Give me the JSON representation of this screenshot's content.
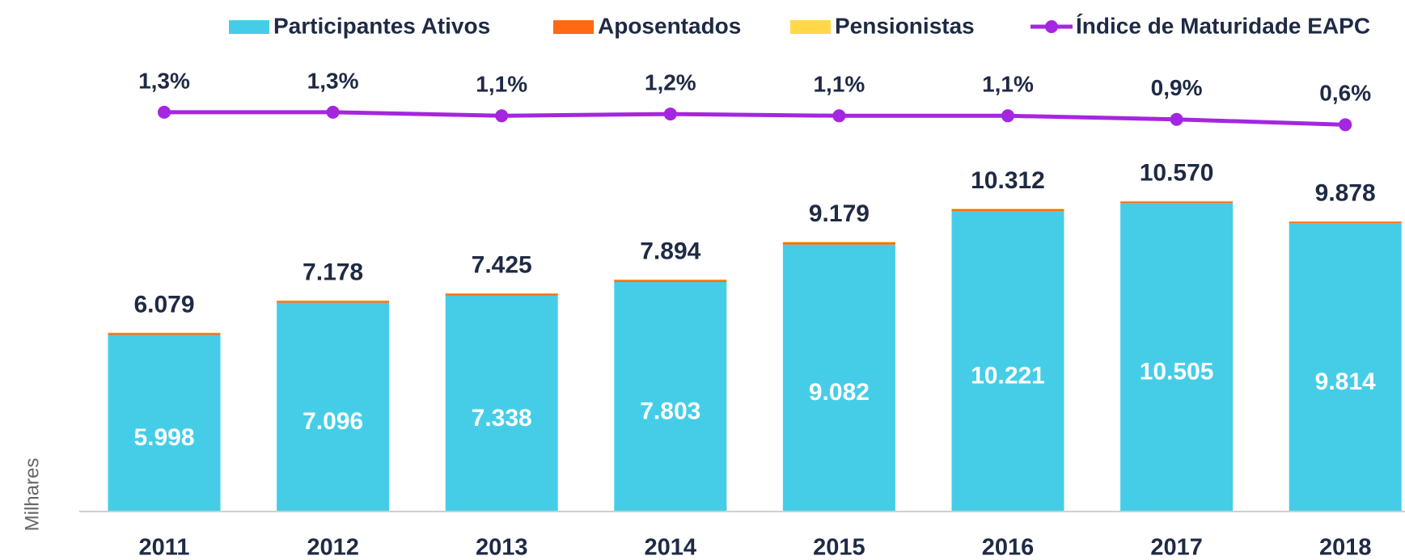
{
  "chart_data": {
    "type": "bar",
    "categories": [
      "2011",
      "2012",
      "2013",
      "2014",
      "2015",
      "2016",
      "2017",
      "2018"
    ],
    "series": [
      {
        "name": "Participantes Ativos",
        "color": "#45cde8",
        "values": [
          5998,
          7096,
          7338,
          7803,
          9082,
          10221,
          10505,
          9814
        ],
        "value_labels": [
          "5.998",
          "7.096",
          "7.338",
          "7.803",
          "9.082",
          "10.221",
          "10.505",
          "9.814"
        ]
      },
      {
        "name": "Aposentados",
        "color": "#ff6a13",
        "values": [
          64,
          64,
          68,
          71,
          76,
          69,
          45,
          45
        ]
      },
      {
        "name": "Pensionistas",
        "color": "#ffd84a",
        "values": [
          17,
          18,
          19,
          20,
          21,
          22,
          20,
          19
        ]
      },
      {
        "name": "Índice de Maturidade EAPC",
        "color": "#a526e0",
        "type": "line",
        "axis": "y2",
        "values": [
          1.3,
          1.3,
          1.1,
          1.2,
          1.1,
          1.1,
          0.9,
          0.6
        ],
        "value_labels": [
          "1,3%",
          "1,3%",
          "1,1%",
          "1,2%",
          "1,1%",
          "1,1%",
          "0,9%",
          "0,6%"
        ]
      }
    ],
    "totals": [
      6079,
      7178,
      7425,
      7894,
      9179,
      10312,
      10570,
      9878
    ],
    "total_labels": [
      "6.079",
      "7.178",
      "7.425",
      "7.894",
      "9.179",
      "10.312",
      "10.570",
      "9.878"
    ],
    "y_label": "Milhares",
    "ylim": [
      0,
      15000
    ],
    "y2lim": [
      -21,
      3.6
    ],
    "legend": "top"
  }
}
